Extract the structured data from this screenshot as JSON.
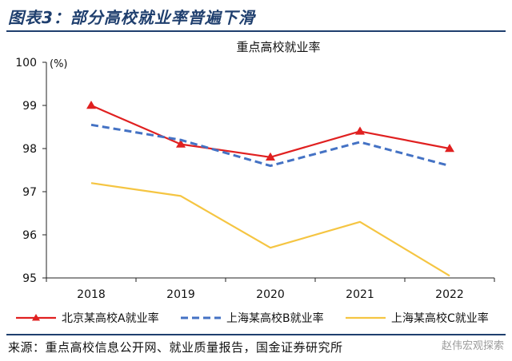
{
  "figure_title": "图表3：部分高校就业率普遍下滑",
  "source_note": "来源：重点高校信息公开网、就业质量报告，国金证券研究所",
  "watermark": "赵伟宏观探索",
  "chart_data": {
    "type": "line",
    "title": "重点高校就业率",
    "unit_label": "(%)",
    "categories": [
      "2018",
      "2019",
      "2020",
      "2021",
      "2022"
    ],
    "ylim": [
      95,
      100
    ],
    "yticks": [
      95,
      96,
      97,
      98,
      99,
      100
    ],
    "grid": false,
    "legend_position": "bottom",
    "series": [
      {
        "name": "北京某高校A就业率",
        "values": [
          99.0,
          98.1,
          97.8,
          98.4,
          98.0
        ],
        "color": "#e02020",
        "style": "solid-triangle-markers"
      },
      {
        "name": "上海某高校B就业率",
        "values": [
          98.55,
          98.2,
          97.6,
          98.15,
          97.6
        ],
        "color": "#4472c4",
        "style": "dashed"
      },
      {
        "name": "上海某高校C就业率",
        "values": [
          97.2,
          96.9,
          95.7,
          96.3,
          95.05
        ],
        "color": "#f5c542",
        "style": "solid"
      }
    ]
  }
}
